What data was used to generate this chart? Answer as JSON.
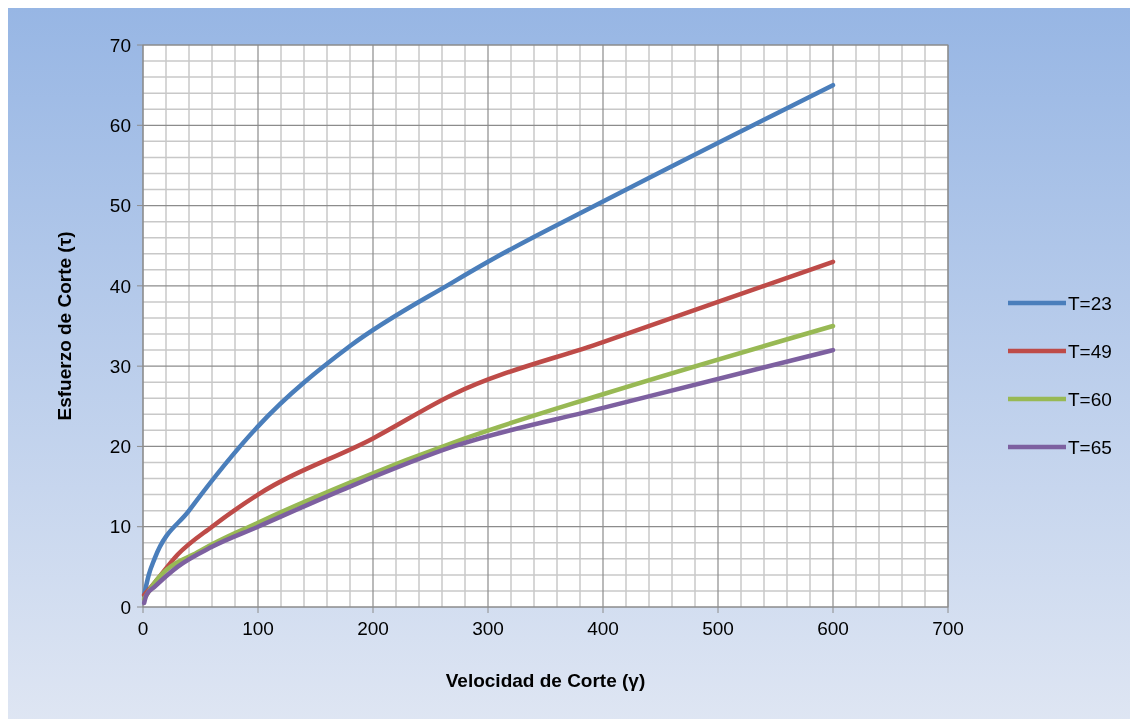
{
  "chart_data": {
    "type": "line",
    "xlabel": "Velocidad de Corte (γ)",
    "ylabel": "Esfuerzo de Corte (τ)",
    "xlim": [
      0,
      700
    ],
    "xticks": [
      0,
      100,
      200,
      300,
      400,
      500,
      600,
      700
    ],
    "ylim": [
      0,
      70
    ],
    "yticks": [
      0,
      10,
      20,
      30,
      40,
      50,
      60,
      70
    ],
    "grid": true,
    "legend": "right",
    "marker": "none",
    "line_style": "solid",
    "series": [
      {
        "name": "T=23",
        "color": "#4a7ebb",
        "x": [
          1,
          5,
          10,
          40,
          100,
          180,
          270,
          300,
          400,
          600
        ],
        "values": [
          1.5,
          4,
          6,
          12,
          22.5,
          32.5,
          40.5,
          43,
          50.5,
          65
        ]
      },
      {
        "name": "T=49",
        "color": "#be4b48",
        "x": [
          1,
          10,
          30,
          60,
          100,
          200,
          270,
          400,
          600
        ],
        "values": [
          1.5,
          3,
          6.5,
          10,
          14,
          21,
          26.5,
          33,
          43
        ]
      },
      {
        "name": "T=60",
        "color": "#98b954",
        "x": [
          1,
          10,
          50,
          100,
          180,
          280,
          400,
          600
        ],
        "values": [
          1,
          3,
          7,
          10.5,
          15.5,
          21,
          26.5,
          35
        ]
      },
      {
        "name": "T=65",
        "color": "#7d60a0",
        "x": [
          1,
          3,
          10,
          30,
          60,
          100,
          180,
          270,
          400,
          600
        ],
        "values": [
          0.5,
          1.5,
          2.5,
          5,
          7.5,
          10,
          15,
          20,
          24.8,
          32
        ]
      }
    ]
  }
}
